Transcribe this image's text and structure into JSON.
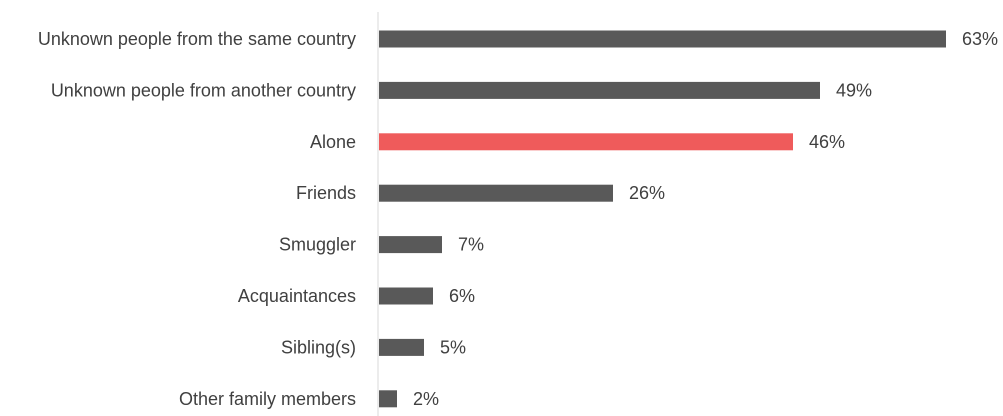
{
  "chart_data": {
    "type": "bar",
    "orientation": "horizontal",
    "categories": [
      "Unknown people from the same country",
      "Unknown people from another country",
      "Alone",
      "Friends",
      "Smuggler",
      "Acquaintances",
      "Sibling(s)",
      "Other family members"
    ],
    "values": [
      63,
      49,
      46,
      26,
      7,
      6,
      5,
      2
    ],
    "value_labels": [
      "63%",
      "49%",
      "46%",
      "26%",
      "7%",
      "6%",
      "5%",
      "2%"
    ],
    "unit": "%",
    "xlim": [
      0,
      63
    ],
    "grid": false,
    "legend": "none",
    "highlight_index": 2,
    "colors": {
      "bar": "#595959",
      "highlight": "#EF5B5B",
      "axis": "#d9d9d9",
      "text": "#404040"
    }
  }
}
